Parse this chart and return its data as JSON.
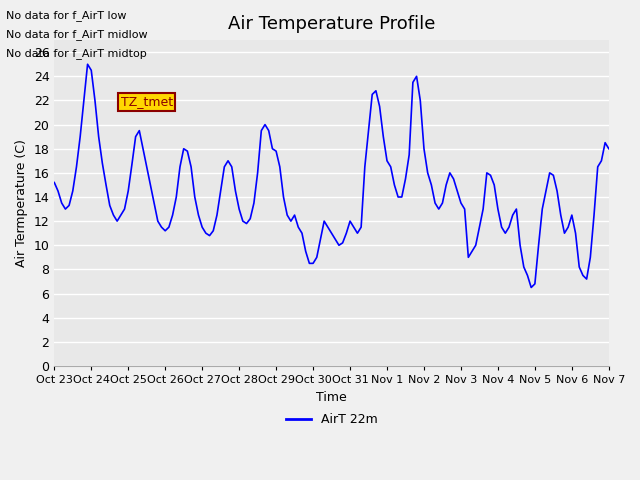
{
  "title": "Air Temperature Profile",
  "xlabel": "Time",
  "ylabel": "Air Termperature (C)",
  "line_color": "#0000FF",
  "line_label": "AirT 22m",
  "bg_color": "#E8E8E8",
  "plot_bg_color": "#E8E8E8",
  "ylim": [
    0,
    27
  ],
  "yticks": [
    0,
    2,
    4,
    6,
    8,
    10,
    12,
    14,
    16,
    18,
    20,
    22,
    24,
    26
  ],
  "text_annotations": [
    "No data for f_AirT low",
    "No data for f_AirT midlow",
    "No data for f_AirT midtop"
  ],
  "tz_label": "TZ_tmet",
  "x_tick_labels": [
    "Oct 23",
    "Oct 24",
    "Oct 25",
    "Oct 26",
    "Oct 27",
    "Oct 28",
    "Oct 29",
    "Oct 30",
    "Oct 31",
    "Nov 1",
    "Nov 2",
    "Nov 3",
    "Nov 4",
    "Nov 5",
    "Nov 6",
    "Nov 7"
  ],
  "time_values": [
    0,
    0.1,
    0.2,
    0.3,
    0.4,
    0.5,
    0.6,
    0.7,
    0.8,
    0.9,
    1.0,
    1.1,
    1.2,
    1.3,
    1.4,
    1.5,
    1.6,
    1.7,
    1.8,
    1.9,
    2.0,
    2.1,
    2.2,
    2.3,
    2.4,
    2.5,
    2.6,
    2.7,
    2.8,
    2.9,
    3.0,
    3.1,
    3.2,
    3.3,
    3.4,
    3.5,
    3.6,
    3.7,
    3.8,
    3.9,
    4.0,
    4.1,
    4.2,
    4.3,
    4.4,
    4.5,
    4.6,
    4.7,
    4.8,
    4.9,
    5.0,
    5.1,
    5.2,
    5.3,
    5.4,
    5.5,
    5.6,
    5.7,
    5.8,
    5.9,
    6.0,
    6.1,
    6.2,
    6.3,
    6.4,
    6.5,
    6.6,
    6.7,
    6.8,
    6.9,
    7.0,
    7.1,
    7.2,
    7.3,
    7.4,
    7.5,
    7.6,
    7.7,
    7.8,
    7.9,
    8.0,
    8.1,
    8.2,
    8.3,
    8.4,
    8.5,
    8.6,
    8.7,
    8.8,
    8.9,
    9.0,
    9.1,
    9.2,
    9.3,
    9.4,
    9.5,
    9.6,
    9.7,
    9.8,
    9.9,
    10.0,
    10.1,
    10.2,
    10.3,
    10.4,
    10.5,
    10.6,
    10.7,
    10.8,
    10.9,
    11.0,
    11.1,
    11.2,
    11.3,
    11.4,
    11.5,
    11.6,
    11.7,
    11.8,
    11.9,
    12.0,
    12.1,
    12.2,
    12.3,
    12.4,
    12.5,
    12.6,
    12.7,
    12.8,
    12.9,
    13.0,
    13.1,
    13.2,
    13.3,
    13.4,
    13.5,
    13.6,
    13.7,
    13.8,
    13.9,
    14.0,
    14.1,
    14.2,
    14.3,
    14.4,
    14.5,
    14.6,
    14.7,
    14.8,
    14.9,
    15.0
  ],
  "temp_values": [
    15.2,
    14.5,
    13.5,
    13.0,
    13.3,
    14.5,
    16.5,
    19.0,
    22.0,
    25.0,
    24.5,
    22.0,
    19.0,
    16.8,
    15.0,
    13.3,
    12.5,
    12.0,
    12.5,
    13.0,
    14.5,
    16.7,
    19.0,
    19.5,
    18.0,
    16.5,
    15.0,
    13.5,
    12.0,
    11.5,
    11.2,
    11.5,
    12.5,
    14.0,
    16.5,
    18.0,
    17.8,
    16.5,
    14.0,
    12.5,
    11.5,
    11.0,
    10.8,
    11.2,
    12.5,
    14.5,
    16.5,
    17.0,
    16.5,
    14.5,
    13.0,
    12.0,
    11.8,
    12.2,
    13.5,
    16.0,
    19.5,
    20.0,
    19.5,
    18.0,
    17.8,
    16.5,
    14.0,
    12.5,
    12.0,
    12.5,
    11.5,
    11.0,
    9.5,
    8.5,
    8.5,
    9.0,
    10.5,
    12.0,
    11.5,
    11.0,
    10.5,
    10.0,
    10.2,
    11.0,
    12.0,
    11.5,
    11.0,
    11.5,
    16.5,
    19.5,
    22.5,
    22.8,
    21.5,
    19.0,
    17.0,
    16.5,
    15.0,
    14.0,
    14.0,
    15.5,
    17.5,
    23.5,
    24.0,
    22.0,
    18.0,
    16.0,
    15.0,
    13.5,
    13.0,
    13.5,
    15.0,
    16.0,
    15.5,
    14.5,
    13.5,
    13.0,
    9.0,
    9.5,
    10.0,
    11.5,
    13.0,
    16.0,
    15.8,
    15.0,
    13.0,
    11.5,
    11.0,
    11.5,
    12.5,
    13.0,
    10.0,
    8.2,
    7.5,
    6.5,
    6.8,
    10.0,
    13.0,
    14.5,
    16.0,
    15.8,
    14.5,
    12.5,
    11.0,
    11.5,
    12.5,
    11.0,
    8.2,
    7.5,
    7.2,
    9.0,
    12.5,
    16.5,
    17.0,
    18.5,
    18.0
  ]
}
